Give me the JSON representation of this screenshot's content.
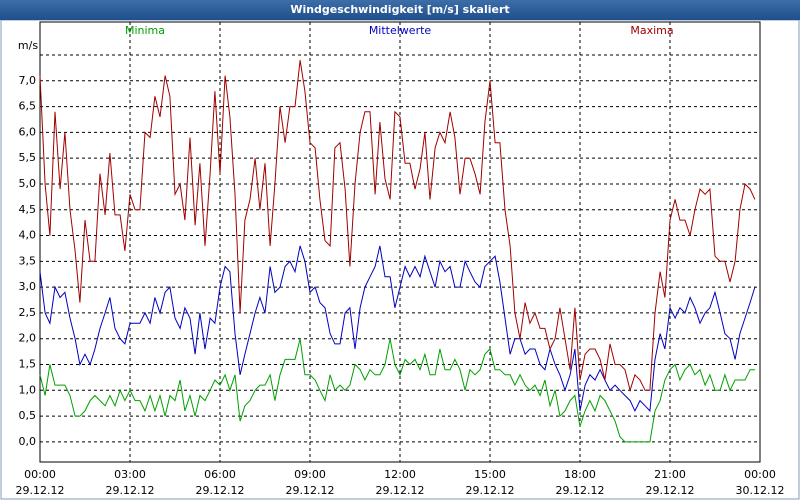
{
  "chart_data": {
    "type": "line",
    "title": "Windgeschwindigkeit [m/s] skaliert",
    "y_label": "m/s",
    "x": [
      0,
      0.17,
      0.33,
      0.5,
      0.67,
      0.83,
      1,
      1.17,
      1.33,
      1.5,
      1.67,
      1.83,
      2,
      2.17,
      2.33,
      2.5,
      2.67,
      2.83,
      3,
      3.17,
      3.33,
      3.5,
      3.67,
      3.83,
      4,
      4.17,
      4.33,
      4.5,
      4.67,
      4.83,
      5,
      5.17,
      5.33,
      5.5,
      5.67,
      5.83,
      6,
      6.17,
      6.33,
      6.5,
      6.67,
      6.83,
      7,
      7.17,
      7.33,
      7.5,
      7.67,
      7.83,
      8,
      8.17,
      8.33,
      8.5,
      8.67,
      8.83,
      9,
      9.17,
      9.33,
      9.5,
      9.67,
      9.83,
      10,
      10.17,
      10.33,
      10.5,
      10.67,
      10.83,
      11,
      11.17,
      11.33,
      11.5,
      11.67,
      11.83,
      12,
      12.17,
      12.33,
      12.5,
      12.67,
      12.83,
      13,
      13.17,
      13.33,
      13.5,
      13.67,
      13.83,
      14,
      14.17,
      14.33,
      14.5,
      14.67,
      14.83,
      15,
      15.17,
      15.33,
      15.5,
      15.67,
      15.83,
      16,
      16.17,
      16.33,
      16.5,
      16.67,
      16.83,
      17,
      17.17,
      17.33,
      17.5,
      17.67,
      17.83,
      18,
      18.17,
      18.33,
      18.5,
      18.67,
      18.83,
      19,
      19.17,
      19.33,
      19.5,
      19.67,
      19.83,
      20,
      20.17,
      20.33,
      20.5,
      20.67,
      20.83,
      21,
      21.17,
      21.33,
      21.5,
      21.67,
      21.83,
      22,
      22.17,
      22.33,
      22.5,
      22.67,
      22.83,
      23,
      23.17,
      23.33,
      23.5,
      23.67,
      23.83
    ],
    "series": [
      {
        "name": "Minima",
        "color": "#00a000",
        "values": [
          1.3,
          0.9,
          1.5,
          1.1,
          1.1,
          1.1,
          0.9,
          0.5,
          0.5,
          0.6,
          0.8,
          0.9,
          0.8,
          0.7,
          0.9,
          0.7,
          1.0,
          0.8,
          1.0,
          0.8,
          0.8,
          0.6,
          0.9,
          0.6,
          0.9,
          0.5,
          0.9,
          0.8,
          1.2,
          0.6,
          0.9,
          0.5,
          0.9,
          0.8,
          1.0,
          1.2,
          1.1,
          1.3,
          1.0,
          1.3,
          0.4,
          0.7,
          0.8,
          1.0,
          1.1,
          1.1,
          1.3,
          0.8,
          1.3,
          1.6,
          1.6,
          1.6,
          2.0,
          1.3,
          1.3,
          1.2,
          1.0,
          0.8,
          1.3,
          1.0,
          1.1,
          1.0,
          1.1,
          1.5,
          1.4,
          1.2,
          1.4,
          1.3,
          1.3,
          1.5,
          2.0,
          1.5,
          1.3,
          1.6,
          1.5,
          1.6,
          1.4,
          1.7,
          1.3,
          1.3,
          1.8,
          1.4,
          1.4,
          1.6,
          1.4,
          1.0,
          1.4,
          1.3,
          1.4,
          1.7,
          1.8,
          1.4,
          1.4,
          1.3,
          1.3,
          1.1,
          1.3,
          1.1,
          1.0,
          1.1,
          0.9,
          1.2,
          0.7,
          1.0,
          0.5,
          0.6,
          0.8,
          0.9,
          0.3,
          0.6,
          0.8,
          0.6,
          0.9,
          0.8,
          0.6,
          0.4,
          0.1,
          0.0,
          0.0,
          0.0,
          0.0,
          0.0,
          0.0,
          0.6,
          0.8,
          1.2,
          1.4,
          1.5,
          1.2,
          1.4,
          1.5,
          1.3,
          1.4,
          1.1,
          1.3,
          1.0,
          1.0,
          1.3,
          1.0,
          1.2,
          1.2,
          1.2,
          1.4,
          1.4
        ]
      },
      {
        "name": "Mittelwerte",
        "color": "#0000c0",
        "values": [
          3.3,
          2.5,
          2.3,
          3.0,
          2.8,
          2.9,
          2.4,
          2.0,
          1.5,
          1.7,
          1.5,
          1.8,
          2.2,
          2.5,
          2.8,
          2.2,
          2.0,
          1.9,
          2.3,
          2.3,
          2.3,
          2.5,
          2.3,
          2.8,
          2.5,
          2.9,
          3.0,
          2.4,
          2.2,
          2.6,
          2.4,
          1.7,
          2.5,
          1.8,
          2.4,
          2.3,
          3.0,
          3.4,
          3.3,
          2.1,
          1.3,
          1.7,
          2.1,
          2.5,
          2.8,
          2.5,
          3.4,
          2.9,
          3.0,
          3.4,
          3.5,
          3.3,
          3.8,
          3.5,
          2.9,
          3.0,
          2.7,
          2.6,
          2.1,
          1.9,
          1.9,
          2.5,
          2.6,
          1.8,
          2.6,
          3.0,
          3.2,
          3.4,
          3.8,
          3.2,
          3.2,
          2.6,
          3.0,
          3.4,
          3.2,
          3.4,
          3.2,
          3.6,
          3.3,
          3.0,
          3.5,
          3.3,
          3.4,
          3.0,
          3.0,
          3.5,
          3.3,
          3.1,
          3.0,
          3.4,
          3.5,
          3.6,
          3.1,
          2.4,
          1.7,
          2.0,
          2.0,
          1.7,
          1.8,
          1.8,
          1.5,
          1.4,
          1.8,
          1.5,
          1.3,
          1.0,
          1.3,
          1.8,
          0.6,
          1.1,
          1.3,
          1.2,
          1.4,
          1.2,
          1.0,
          1.1,
          1.0,
          0.9,
          0.8,
          0.6,
          0.8,
          0.7,
          0.6,
          1.6,
          2.1,
          1.8,
          2.6,
          2.4,
          2.6,
          2.5,
          2.8,
          2.6,
          2.3,
          2.5,
          2.6,
          2.9,
          2.5,
          2.1,
          2.0,
          1.6,
          2.1,
          2.4,
          2.7,
          3.0
        ]
      },
      {
        "name": "Maxima",
        "color": "#a00000",
        "values": [
          7.1,
          5.0,
          4.0,
          6.4,
          4.9,
          6.0,
          4.5,
          3.7,
          2.7,
          4.3,
          3.5,
          3.5,
          5.2,
          4.4,
          5.6,
          4.4,
          4.4,
          3.7,
          4.8,
          4.5,
          4.5,
          6.0,
          5.9,
          6.7,
          6.3,
          7.1,
          6.7,
          4.8,
          5.0,
          4.3,
          5.9,
          4.2,
          5.4,
          3.8,
          5.2,
          6.8,
          5.2,
          7.1,
          6.3,
          4.8,
          2.5,
          4.3,
          4.7,
          5.5,
          4.5,
          5.4,
          3.8,
          5.0,
          6.5,
          5.8,
          6.5,
          6.5,
          7.4,
          6.8,
          5.8,
          5.7,
          4.7,
          3.9,
          3.8,
          5.7,
          5.8,
          4.9,
          3.4,
          5.0,
          6.0,
          6.4,
          6.4,
          4.8,
          6.2,
          5.1,
          4.7,
          6.4,
          6.3,
          5.4,
          5.4,
          4.9,
          5.3,
          6.0,
          4.7,
          5.7,
          6.0,
          5.8,
          6.4,
          5.9,
          4.8,
          5.5,
          5.5,
          5.2,
          4.8,
          6.2,
          7.0,
          5.8,
          5.8,
          4.5,
          3.8,
          2.5,
          2.0,
          2.7,
          2.3,
          2.5,
          2.2,
          2.2,
          1.8,
          2.0,
          2.6,
          2.0,
          1.4,
          2.6,
          1.2,
          1.7,
          1.8,
          1.8,
          1.6,
          1.2,
          1.9,
          1.5,
          1.5,
          1.4,
          1.0,
          1.3,
          1.2,
          1.0,
          1.0,
          2.5,
          3.3,
          2.8,
          4.3,
          4.7,
          4.3,
          4.3,
          4.0,
          4.5,
          4.9,
          4.8,
          4.9,
          3.6,
          3.5,
          3.5,
          3.1,
          3.5,
          4.5,
          5.0,
          4.9,
          4.7
        ]
      }
    ],
    "xlim": [
      0,
      24
    ],
    "xticks": [
      {
        "value": 0,
        "label": "00:00\n29.12.12"
      },
      {
        "value": 3,
        "label": "03:00\n29.12.12"
      },
      {
        "value": 6,
        "label": "06:00\n29.12.12"
      },
      {
        "value": 9,
        "label": "09:00\n29.12.12"
      },
      {
        "value": 12,
        "label": "12:00\n29.12.12"
      },
      {
        "value": 15,
        "label": "15:00\n29.12.12"
      },
      {
        "value": 18,
        "label": "18:00\n29.12.12"
      },
      {
        "value": 21,
        "label": "21:00\n29.12.12"
      },
      {
        "value": 24,
        "label": "00:00\n30.12.12"
      }
    ],
    "ylim": [
      -0.39,
      8.14
    ],
    "yticks": [
      {
        "value": 0,
        "label": "0,0"
      },
      {
        "value": 0.5,
        "label": "0,5"
      },
      {
        "value": 1,
        "label": "1,0"
      },
      {
        "value": 1.5,
        "label": "1,5"
      },
      {
        "value": 2,
        "label": "2,0"
      },
      {
        "value": 2.5,
        "label": "2,5"
      },
      {
        "value": 3,
        "label": "3,0"
      },
      {
        "value": 3.5,
        "label": "3,5"
      },
      {
        "value": 4,
        "label": "4,0"
      },
      {
        "value": 4.5,
        "label": "4,5"
      },
      {
        "value": 5,
        "label": "5,0"
      },
      {
        "value": 5.5,
        "label": "5,5"
      },
      {
        "value": 6,
        "label": "6,0"
      },
      {
        "value": 6.5,
        "label": "6,5"
      },
      {
        "value": 7,
        "label": "7,0"
      },
      {
        "value": 7.5,
        "label": null
      }
    ],
    "grid": true
  }
}
